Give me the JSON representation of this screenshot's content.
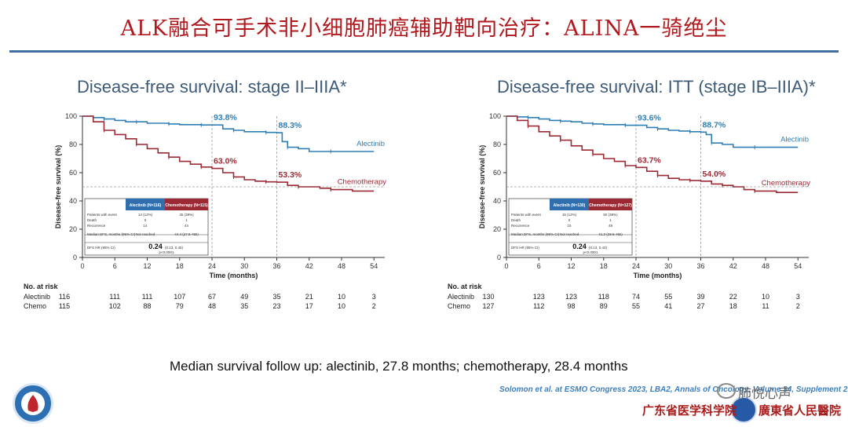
{
  "slide": {
    "title": "ALK融合可手术非小细胞肺癌辅助靶向治疗：ALINA一骑绝尘",
    "footnote": "Median survival follow up: alectinib, 27.8 months; chemotherapy, 28.4 months",
    "citation": "Solomon et al. at ESMO Congress 2023, LBA2, Annals of Oncology, Volume 34, Supplement 2.",
    "institution_left": "广东省医学科学院",
    "institution_right": "廣東省人民醫院",
    "wechat_watermark": "肺悦心声"
  },
  "colors": {
    "alectinib": "#2f7fb5",
    "chemotherapy": "#9b2a35",
    "title_red": "#b0191e",
    "panel_title": "#3d5a78"
  },
  "icons": [
    "hospital-logo-icon",
    "academy-seal-icon",
    "wechat-icon"
  ],
  "chart_data": [
    {
      "type": "line",
      "title": "Disease-free survival: stage II–IIIA*",
      "xlabel": "Time (months)",
      "ylabel": "Disease-free survival (%)",
      "xticks": [
        0,
        6,
        12,
        18,
        24,
        30,
        36,
        42,
        48,
        54
      ],
      "yticks": [
        0,
        20,
        40,
        60,
        80,
        100
      ],
      "xlim": [
        0,
        56
      ],
      "ylim": [
        0,
        100
      ],
      "series": [
        {
          "name": "Alectinib",
          "color": "#2f7fb5",
          "points": [
            [
              0,
              100
            ],
            [
              2,
              99
            ],
            [
              4,
              98
            ],
            [
              6,
              97
            ],
            [
              8,
              96
            ],
            [
              10,
              96
            ],
            [
              12,
              95
            ],
            [
              14,
              95
            ],
            [
              16,
              94.5
            ],
            [
              18,
              94
            ],
            [
              20,
              94
            ],
            [
              22,
              93.8
            ],
            [
              24,
              93.8
            ],
            [
              26,
              91
            ],
            [
              28,
              90
            ],
            [
              30,
              89
            ],
            [
              32,
              89
            ],
            [
              34,
              88.5
            ],
            [
              36,
              88.3
            ],
            [
              37,
              82
            ],
            [
              38,
              78
            ],
            [
              40,
              77
            ],
            [
              42,
              75
            ],
            [
              46,
              75
            ],
            [
              50,
              75
            ],
            [
              54,
              75
            ]
          ]
        },
        {
          "name": "Chemotherapy",
          "color": "#9b2a35",
          "points": [
            [
              0,
              100
            ],
            [
              2,
              96
            ],
            [
              4,
              90
            ],
            [
              6,
              87
            ],
            [
              8,
              84
            ],
            [
              10,
              80
            ],
            [
              12,
              77
            ],
            [
              14,
              74
            ],
            [
              16,
              71
            ],
            [
              18,
              68
            ],
            [
              20,
              66
            ],
            [
              22,
              64
            ],
            [
              24,
              63
            ],
            [
              26,
              60
            ],
            [
              28,
              57
            ],
            [
              30,
              55
            ],
            [
              32,
              54
            ],
            [
              34,
              53.5
            ],
            [
              36,
              53.3
            ],
            [
              38,
              51
            ],
            [
              40,
              50
            ],
            [
              42,
              50
            ],
            [
              44,
              49
            ],
            [
              46,
              48
            ],
            [
              50,
              47
            ],
            [
              54,
              47
            ]
          ]
        }
      ],
      "annotations": [
        {
          "text": "93.8%",
          "x": 24,
          "y": 93.8,
          "color": "#2f7fb5"
        },
        {
          "text": "88.3%",
          "x": 36,
          "y": 88.3,
          "color": "#2f7fb5"
        },
        {
          "text": "63.0%",
          "x": 24,
          "y": 63.0,
          "color": "#9b2a35"
        },
        {
          "text": "53.3%",
          "x": 36,
          "y": 53.3,
          "color": "#9b2a35"
        }
      ],
      "legend_labels": [
        "Alectinib",
        "Chemotherapy"
      ],
      "inset_table": {
        "headers": [
          "",
          "Alectinib (N=116)",
          "Chemotherapy (N=115)"
        ],
        "rows": [
          [
            "Patients with event",
            "14 (12%)",
            "45 (39%)"
          ],
          [
            "Death",
            "0",
            "1"
          ],
          [
            "Recurrence",
            "14",
            "44"
          ],
          [
            "Median DFS, months (95% CI)",
            "Not reached",
            "44.4 (27.8–NE)"
          ]
        ],
        "hr_label": "DFS HR (95% CI)",
        "hr_value": "0.24",
        "hr_ci": "(0.13, 0.45)",
        "p_value": "p<0.0001"
      },
      "risk_table": {
        "title": "No. at risk",
        "rows": [
          {
            "label": "Alectinib",
            "values": [
              "116",
              "111",
              "111",
              "107",
              "67",
              "49",
              "35",
              "21",
              "10",
              "3"
            ]
          },
          {
            "label": "Chemo",
            "values": [
              "115",
              "102",
              "88",
              "79",
              "48",
              "35",
              "23",
              "17",
              "10",
              "2"
            ]
          }
        ]
      }
    },
    {
      "type": "line",
      "title": "Disease-free survival: ITT (stage IB–IIIA)*",
      "xlabel": "Time (months)",
      "ylabel": "Disease-free survival (%)",
      "xticks": [
        0,
        6,
        12,
        18,
        24,
        30,
        36,
        42,
        48,
        54
      ],
      "yticks": [
        0,
        20,
        40,
        60,
        80,
        100
      ],
      "xlim": [
        0,
        56
      ],
      "ylim": [
        0,
        100
      ],
      "series": [
        {
          "name": "Alectinib",
          "color": "#2f7fb5",
          "points": [
            [
              0,
              100
            ],
            [
              2,
              99.5
            ],
            [
              4,
              99
            ],
            [
              6,
              98
            ],
            [
              8,
              97
            ],
            [
              10,
              96.5
            ],
            [
              12,
              96
            ],
            [
              14,
              95
            ],
            [
              16,
              94.5
            ],
            [
              18,
              94
            ],
            [
              20,
              94
            ],
            [
              22,
              93.6
            ],
            [
              24,
              93.6
            ],
            [
              26,
              92
            ],
            [
              28,
              91
            ],
            [
              30,
              90
            ],
            [
              32,
              89.5
            ],
            [
              34,
              89
            ],
            [
              36,
              88.7
            ],
            [
              37,
              87
            ],
            [
              38,
              81
            ],
            [
              40,
              80
            ],
            [
              42,
              78
            ],
            [
              46,
              78
            ],
            [
              50,
              78
            ],
            [
              54,
              78
            ]
          ]
        },
        {
          "name": "Chemotherapy",
          "color": "#9b2a35",
          "points": [
            [
              0,
              100
            ],
            [
              2,
              97
            ],
            [
              4,
              93
            ],
            [
              6,
              89
            ],
            [
              8,
              86
            ],
            [
              10,
              83
            ],
            [
              12,
              79
            ],
            [
              14,
              76
            ],
            [
              16,
              73
            ],
            [
              18,
              70
            ],
            [
              20,
              68
            ],
            [
              22,
              65
            ],
            [
              24,
              63.7
            ],
            [
              26,
              61
            ],
            [
              28,
              58
            ],
            [
              30,
              56
            ],
            [
              32,
              55
            ],
            [
              34,
              54.5
            ],
            [
              36,
              54
            ],
            [
              38,
              52
            ],
            [
              40,
              51
            ],
            [
              42,
              50
            ],
            [
              44,
              48
            ],
            [
              46,
              47
            ],
            [
              50,
              46
            ],
            [
              54,
              46
            ]
          ]
        }
      ],
      "annotations": [
        {
          "text": "93.6%",
          "x": 24,
          "y": 93.6,
          "color": "#2f7fb5"
        },
        {
          "text": "88.7%",
          "x": 36,
          "y": 88.7,
          "color": "#2f7fb5"
        },
        {
          "text": "63.7%",
          "x": 24,
          "y": 63.7,
          "color": "#9b2a35"
        },
        {
          "text": "54.0%",
          "x": 36,
          "y": 54.0,
          "color": "#9b2a35"
        }
      ],
      "legend_labels": [
        "Alectinib",
        "Chemotherapy"
      ],
      "inset_table": {
        "headers": [
          "",
          "Alectinib (N=130)",
          "Chemotherapy (N=127)"
        ],
        "rows": [
          [
            "Patients with event",
            "15 (12%)",
            "50 (39%)"
          ],
          [
            "Death",
            "0",
            "1"
          ],
          [
            "Recurrence",
            "15",
            "49"
          ],
          [
            "Median DFS, months (95% CI)",
            "Not reached",
            "41.3 (28.5–NE)"
          ]
        ],
        "hr_label": "DFS HR (95% CI)",
        "hr_value": "0.24",
        "hr_ci": "(0.13, 0.43)",
        "p_value": "p<0.0001"
      },
      "risk_table": {
        "title": "No. at risk",
        "rows": [
          {
            "label": "Alectinib",
            "values": [
              "130",
              "123",
              "123",
              "118",
              "74",
              "55",
              "39",
              "22",
              "10",
              "3"
            ]
          },
          {
            "label": "Chemo",
            "values": [
              "127",
              "112",
              "98",
              "89",
              "55",
              "41",
              "27",
              "18",
              "11",
              "2"
            ]
          }
        ]
      }
    }
  ]
}
